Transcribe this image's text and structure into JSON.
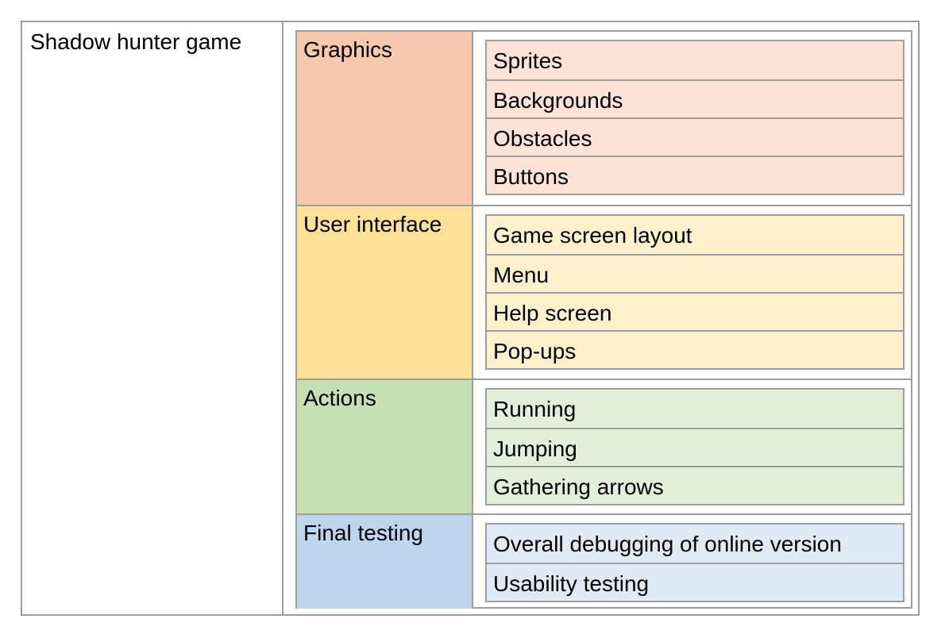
{
  "root": "Shadow hunter game",
  "groups": [
    {
      "label": "Graphics",
      "color": "#f6c9ae",
      "subcolor": "#fbe4d6",
      "items": [
        "Sprites",
        "Backgrounds",
        "Obstacles",
        "Buttons"
      ]
    },
    {
      "label": "User interface",
      "color": "#fde196",
      "subcolor": "#fff1cc",
      "items": [
        "Game screen layout",
        "Menu",
        "Help screen",
        "Pop-ups"
      ]
    },
    {
      "label": "Actions",
      "color": "#c5e0b3",
      "subcolor": "#e2efd9",
      "items": [
        "Running",
        "Jumping",
        "Gathering arrows"
      ]
    },
    {
      "label": "Final testing",
      "color": "#bdd6ee",
      "subcolor": "#deeaf6",
      "items": [
        "Overall debugging of online version",
        "Usability testing"
      ]
    }
  ]
}
